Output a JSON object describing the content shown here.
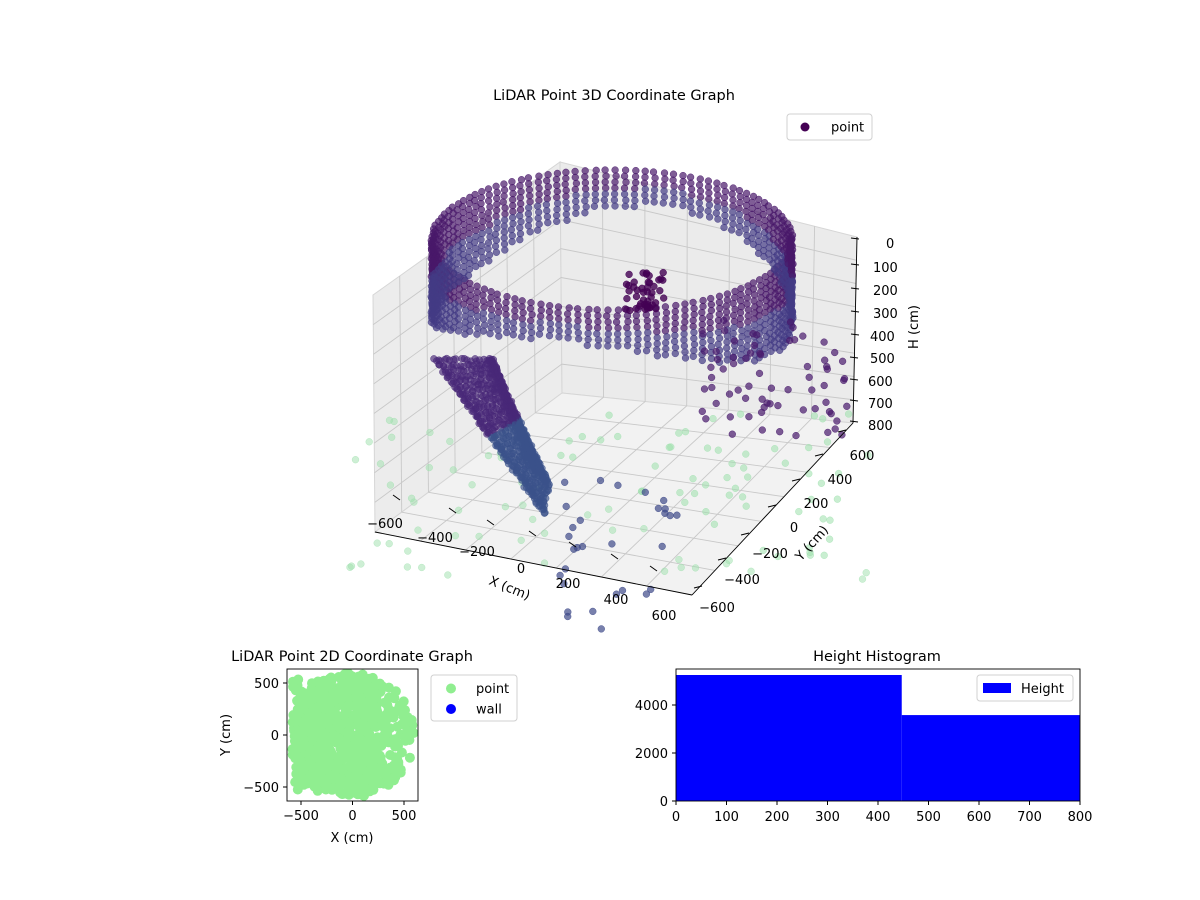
{
  "chart_data": [
    {
      "type": "scatter3d",
      "title": "LiDAR Point 3D Coordinate Graph",
      "xlabel": "X (cm)",
      "ylabel": "Y (cm)",
      "zlabel": "H (cm)",
      "xticks": [
        "−600",
        "−400",
        "−200",
        "0",
        "200",
        "400",
        "600"
      ],
      "yticks": [
        "−600",
        "−400",
        "−200",
        "0",
        "200",
        "400",
        "600"
      ],
      "zticks": [
        "0",
        "100",
        "200",
        "300",
        "400",
        "500",
        "600",
        "700",
        "800"
      ],
      "xlim": [
        -650,
        650
      ],
      "ylim": [
        -650,
        650
      ],
      "zlim": [
        0,
        800
      ],
      "zinverted": true,
      "legend": {
        "placement": "top-right",
        "entries": [
          "point"
        ]
      },
      "colormap": "viridis",
      "grid": true,
      "series": [
        {
          "name": "point",
          "color": "#440154",
          "description_points": [
            {
              "x": -300,
              "y": -450,
              "h": 30
            },
            {
              "x": 0,
              "y": -550,
              "h": 20
            },
            {
              "x": 300,
              "y": -500,
              "h": 25
            },
            {
              "x": 520,
              "y": -300,
              "h": 30
            },
            {
              "x": 580,
              "y": 0,
              "h": 60
            },
            {
              "x": 500,
              "y": 300,
              "h": 120
            },
            {
              "x": 250,
              "y": 500,
              "h": 150
            },
            {
              "x": -100,
              "y": 550,
              "h": 100
            },
            {
              "x": -400,
              "y": 450,
              "h": 60
            },
            {
              "x": -550,
              "y": 100,
              "h": 40
            },
            {
              "x": -500,
              "y": -200,
              "h": 35
            }
          ]
        }
      ]
    },
    {
      "type": "scatter",
      "title": "LiDAR Point 2D Coordinate Graph",
      "xlabel": "X (cm)",
      "ylabel": "Y (cm)",
      "xlim": [
        -650,
        650
      ],
      "ylim": [
        -650,
        650
      ],
      "xticks": [
        "−500",
        "0",
        "500"
      ],
      "yticks": [
        "500",
        "0",
        "−500"
      ],
      "legend": {
        "placement": "outside-right",
        "entries": [
          "point",
          "wall"
        ]
      },
      "series": [
        {
          "name": "point",
          "color": "#90ee90"
        },
        {
          "name": "wall",
          "color": "#0000ff"
        }
      ]
    },
    {
      "type": "bar",
      "title": "Height Histogram",
      "xlim": [
        0,
        800
      ],
      "ylim": [
        0,
        5500
      ],
      "xticks": [
        "0",
        "100",
        "200",
        "300",
        "400",
        "500",
        "600",
        "700",
        "800"
      ],
      "yticks": [
        "0",
        "2000",
        "4000"
      ],
      "legend": {
        "placement": "top-right",
        "entries": [
          "Height"
        ]
      },
      "series": [
        {
          "name": "Height",
          "color": "#0000ff",
          "bins": [
            [
              0,
              447,
              5250
            ],
            [
              447,
              800,
              3580
            ]
          ]
        }
      ]
    }
  ]
}
